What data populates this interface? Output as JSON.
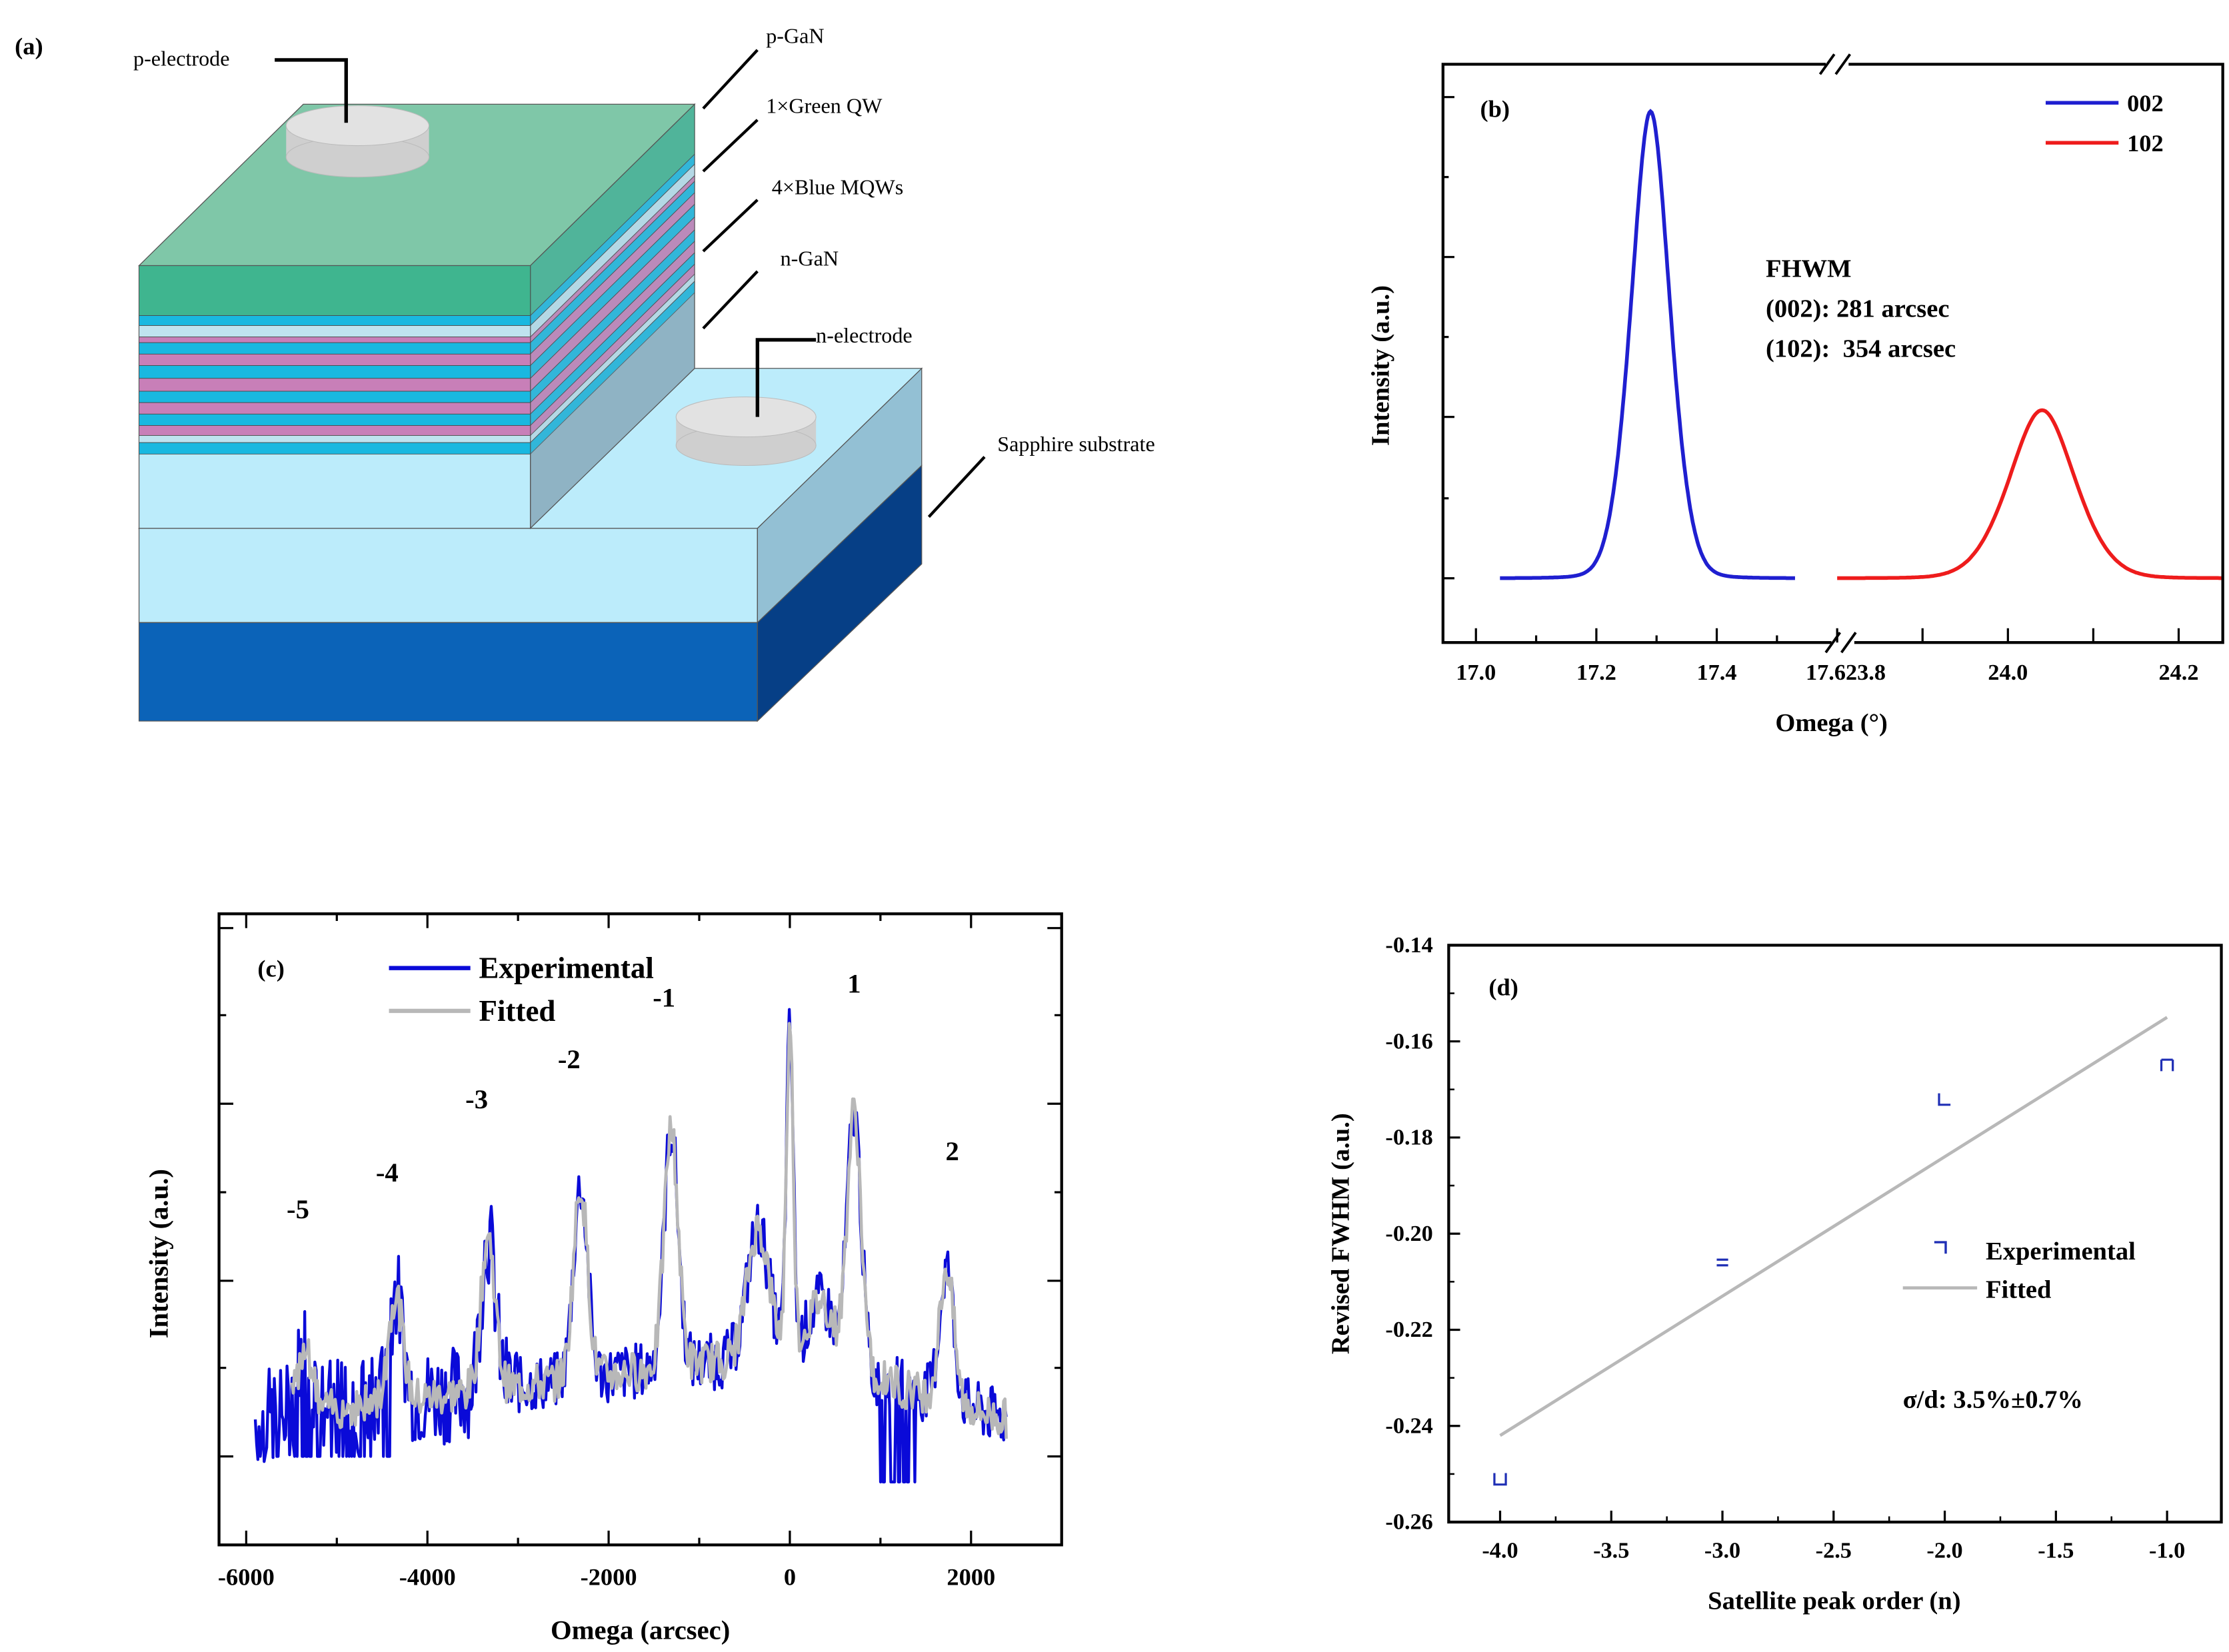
{
  "figure": {
    "panel_a": {
      "label": "(a)",
      "p_electrode": "p-electrode",
      "n_electrode": "n-electrode",
      "layers": [
        "p-GaN",
        "1×Green QW",
        "4×Blue MQWs",
        "n-GaN"
      ],
      "substrate": "Sapphire substrate",
      "colors": {
        "p_gan": "#3fb58f",
        "green_qw": "#bfe3ef",
        "blue_qw": "#19b8e0",
        "barrier": "#c87fb8",
        "n_gan": "#b9ecfb",
        "sapphire": "#0b63b8"
      }
    },
    "panel_b_label": "(b)",
    "panel_c_label": "(c)",
    "panel_d_label": "(d)"
  },
  "chart_data": [
    {
      "type": "line",
      "title": "",
      "xlabel": "Omega (°)",
      "ylabel": "Intensity (a.u.)",
      "broken_axis": true,
      "segments": [
        {
          "xlim": [
            16.95,
            17.6
          ],
          "ticks": [
            "17.0",
            "17.2",
            "17.4",
            "17.6"
          ]
        },
        {
          "xlim": [
            23.8,
            24.25
          ],
          "ticks": [
            "23.8",
            "24.0",
            "24.2"
          ]
        }
      ],
      "series": [
        {
          "name": "002",
          "color": "#1f1fd0",
          "peak_x": 17.29,
          "fwhm_arcsec": 281,
          "x_range": [
            17.04,
            17.53
          ],
          "peak_height": 1.0
        },
        {
          "name": "102",
          "color": "#ee1c1c",
          "peak_x": 24.04,
          "fwhm_arcsec": 354,
          "x_range": [
            23.8,
            24.25
          ],
          "peak_height": 0.36
        }
      ],
      "annotation": {
        "heading": "FHWM",
        "line1": "(002): 281 arcsec",
        "line2": "(102):  354 arcsec"
      },
      "legend_position": "top-right",
      "y_ticks_labeled": false
    },
    {
      "type": "line",
      "title": "",
      "xlabel": "Omega (arcsec)",
      "ylabel": "Intensity (a.u.)",
      "xlim": [
        -6300,
        3000
      ],
      "x_ticks": [
        "-6000",
        "-4000",
        "-2000",
        "0",
        "2000"
      ],
      "series": [
        {
          "name": "Experimental",
          "color": "#0a0ad8"
        },
        {
          "name": "Fitted",
          "color": "#b8b8b8"
        }
      ],
      "satellite_peaks": [
        {
          "order": "-5",
          "x": -5350,
          "y": 0.22
        },
        {
          "order": "-4",
          "x": -4350,
          "y": 0.32
        },
        {
          "order": "-3",
          "x": -3330,
          "y": 0.43
        },
        {
          "order": "-2",
          "x": -2310,
          "y": 0.53
        },
        {
          "order": "-1",
          "x": -1310,
          "y": 0.64
        },
        {
          "order": "1",
          "x": 710,
          "y": 0.67
        },
        {
          "order": "2",
          "x": 1730,
          "y": 0.37
        }
      ],
      "main_peak": {
        "x": 0,
        "y": 1.0
      },
      "legend_position": "top-left",
      "y_ticks_labeled": false
    },
    {
      "type": "scatter",
      "title": "",
      "xlabel": "Satellite peak order (n)",
      "ylabel": "Revised FWHM (a.u.)",
      "xlim": [
        -4.2,
        -0.9
      ],
      "ylim": [
        -0.26,
        -0.14
      ],
      "x_ticks": [
        "-4.0",
        "-3.5",
        "-3.0",
        "-2.5",
        "-2.0",
        "-1.5",
        "-1.0"
      ],
      "y_ticks": [
        "-0.14",
        "-0.16",
        "-0.18",
        "-0.20",
        "-0.22",
        "-0.24",
        "-0.26"
      ],
      "series": [
        {
          "name": "Experimental",
          "color": "#1f2fb5",
          "x": [
            -4.0,
            -3.0,
            -2.0,
            -1.0
          ],
          "y": [
            -0.251,
            -0.206,
            -0.172,
            -0.165
          ]
        },
        {
          "name": "Fitted",
          "color": "#b8b8b8",
          "x": [
            -4.0,
            -1.0
          ],
          "y": [
            -0.242,
            -0.155
          ]
        }
      ],
      "annotation": "σ/d: 3.5%±0.7%",
      "legend_position": "right",
      "grid": false
    }
  ]
}
